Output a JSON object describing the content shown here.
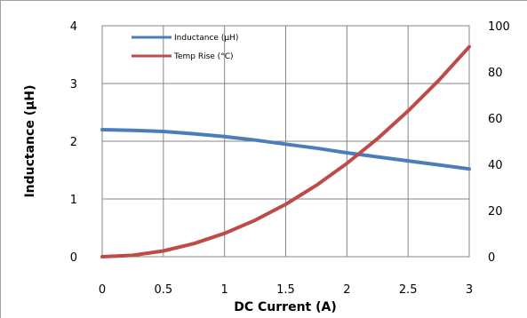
{
  "chart_data": {
    "type": "line",
    "xlabel": "DC Current (A)",
    "ylabel_left": "Inductance (µH)",
    "ylabel_right": "",
    "xlim": [
      0,
      3
    ],
    "ylim_left": [
      0,
      4
    ],
    "ylim_right": [
      0,
      100
    ],
    "x_ticks": [
      "0",
      "0.5",
      "1",
      "1.5",
      "2",
      "2.5",
      "3"
    ],
    "y_left_ticks": [
      "0",
      "1",
      "2",
      "3",
      "4"
    ],
    "y_right_ticks": [
      "0",
      "20",
      "40",
      "60",
      "80",
      "100"
    ],
    "grid": true,
    "legend_position": "top-left",
    "series": [
      {
        "name": "Inductance (µH)",
        "axis": "left",
        "color": "#4a7ebb",
        "x": [
          0,
          0.25,
          0.5,
          0.75,
          1.0,
          1.25,
          1.5,
          1.75,
          2.0,
          2.25,
          2.5,
          2.75,
          3.0
        ],
        "y": [
          2.2,
          2.19,
          2.17,
          2.13,
          2.08,
          2.02,
          1.95,
          1.88,
          1.8,
          1.73,
          1.66,
          1.59,
          1.52
        ]
      },
      {
        "name": "Temp Rise (°C)",
        "axis": "right",
        "color": "#be4b48",
        "x": [
          0,
          0.25,
          0.5,
          0.75,
          1.0,
          1.25,
          1.5,
          1.75,
          2.0,
          2.25,
          2.5,
          2.75,
          3.0
        ],
        "y": [
          0,
          0.6,
          2.5,
          5.7,
          10.1,
          15.8,
          22.7,
          30.9,
          40.4,
          51.1,
          63.1,
          76.3,
          90.9
        ]
      }
    ]
  }
}
